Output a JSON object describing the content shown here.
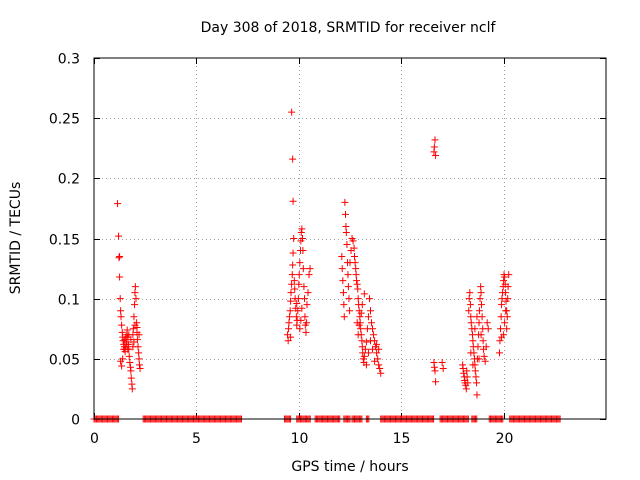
{
  "chart_data": {
    "type": "scatter",
    "title": "Day 308 of 2018, SRMTID for receiver nclf",
    "xlabel": "GPS time / hours",
    "ylabel": "SRMTID / TECUs",
    "xlim": [
      0,
      25
    ],
    "ylim": [
      0,
      0.3
    ],
    "x_ticks": [
      0,
      5,
      10,
      15,
      20
    ],
    "y_ticks": [
      0,
      0.05,
      0.1,
      0.15,
      0.2,
      0.25,
      0.3
    ],
    "x_tick_labels": [
      "0",
      "5",
      "10",
      "15",
      "20"
    ],
    "y_tick_labels": [
      "0",
      "0.05",
      "0.1",
      "0.15",
      "0.2",
      "0.25",
      "0.3"
    ],
    "grid": true,
    "marker": "+",
    "marker_color": "#ff0000",
    "zero_segments": [
      [
        0,
        1.2
      ],
      [
        2.4,
        7.2
      ],
      [
        9.3,
        9.6
      ],
      [
        9.9,
        10.6
      ],
      [
        10.8,
        12.0
      ],
      [
        12.2,
        12.5
      ],
      [
        12.6,
        13.1
      ],
      [
        13.3,
        13.45
      ],
      [
        14.0,
        16.6
      ],
      [
        16.9,
        18.3
      ],
      [
        18.45,
        18.7
      ],
      [
        19.3,
        20.0
      ],
      [
        20.3,
        22.8
      ]
    ],
    "clusters": [
      {
        "name": "burst-1",
        "x_range": [
          1.1,
          2.3
        ],
        "points": [
          [
            1.15,
            0.179
          ],
          [
            1.2,
            0.152
          ],
          [
            1.22,
            0.134
          ],
          [
            1.25,
            0.118
          ],
          [
            1.28,
            0.1
          ],
          [
            1.3,
            0.09
          ],
          [
            1.32,
            0.085
          ],
          [
            1.35,
            0.078
          ],
          [
            1.38,
            0.072
          ],
          [
            1.4,
            0.068
          ],
          [
            1.42,
            0.065
          ],
          [
            1.45,
            0.062
          ],
          [
            1.48,
            0.06
          ],
          [
            1.5,
            0.058
          ],
          [
            1.52,
            0.056
          ],
          [
            1.55,
            0.06
          ],
          [
            1.58,
            0.064
          ],
          [
            1.6,
            0.07
          ],
          [
            1.62,
            0.074
          ],
          [
            1.65,
            0.068
          ],
          [
            1.68,
            0.062
          ],
          [
            1.7,
            0.058
          ],
          [
            1.72,
            0.052
          ],
          [
            1.75,
            0.047
          ],
          [
            1.78,
            0.043
          ],
          [
            1.8,
            0.04
          ],
          [
            1.82,
            0.034
          ],
          [
            1.85,
            0.029
          ],
          [
            1.87,
            0.025
          ],
          [
            1.9,
            0.06
          ],
          [
            1.92,
            0.075
          ],
          [
            1.95,
            0.085
          ],
          [
            1.98,
            0.095
          ],
          [
            2.0,
            0.105
          ],
          [
            2.02,
            0.11
          ],
          [
            2.05,
            0.1
          ],
          [
            2.08,
            0.08
          ],
          [
            2.1,
            0.072
          ],
          [
            2.12,
            0.066
          ],
          [
            2.15,
            0.06
          ],
          [
            2.18,
            0.055
          ],
          [
            2.2,
            0.05
          ],
          [
            2.22,
            0.045
          ],
          [
            2.25,
            0.042
          ],
          [
            1.3,
            0.048
          ],
          [
            1.35,
            0.044
          ],
          [
            1.4,
            0.05
          ],
          [
            1.45,
            0.058
          ],
          [
            1.5,
            0.066
          ],
          [
            1.6,
            0.062
          ],
          [
            1.7,
            0.07
          ],
          [
            1.8,
            0.066
          ],
          [
            1.9,
            0.07
          ],
          [
            2.0,
            0.078
          ],
          [
            2.1,
            0.076
          ],
          [
            2.2,
            0.07
          ],
          [
            1.25,
            0.135
          ],
          [
            1.55,
            0.068
          ],
          [
            1.65,
            0.058
          ],
          [
            1.95,
            0.064
          ]
        ]
      },
      {
        "name": "burst-2",
        "x_range": [
          9.4,
          10.6
        ],
        "points": [
          [
            9.65,
            0.255
          ],
          [
            9.7,
            0.216
          ],
          [
            9.72,
            0.181
          ],
          [
            9.45,
            0.07
          ],
          [
            9.48,
            0.065
          ],
          [
            9.5,
            0.075
          ],
          [
            9.52,
            0.08
          ],
          [
            9.55,
            0.085
          ],
          [
            9.58,
            0.09
          ],
          [
            9.6,
            0.098
          ],
          [
            9.62,
            0.105
          ],
          [
            9.65,
            0.112
          ],
          [
            9.68,
            0.12
          ],
          [
            9.7,
            0.128
          ],
          [
            9.72,
            0.138
          ],
          [
            9.75,
            0.15
          ],
          [
            9.78,
            0.115
          ],
          [
            9.8,
            0.108
          ],
          [
            9.82,
            0.1
          ],
          [
            9.85,
            0.092
          ],
          [
            9.88,
            0.085
          ],
          [
            9.9,
            0.078
          ],
          [
            9.92,
            0.082
          ],
          [
            9.95,
            0.09
          ],
          [
            9.98,
            0.1
          ],
          [
            10.0,
            0.112
          ],
          [
            10.02,
            0.12
          ],
          [
            10.05,
            0.13
          ],
          [
            10.08,
            0.14
          ],
          [
            10.1,
            0.148
          ],
          [
            10.12,
            0.155
          ],
          [
            10.15,
            0.158
          ],
          [
            10.18,
            0.15
          ],
          [
            10.2,
            0.14
          ],
          [
            10.22,
            0.125
          ],
          [
            10.25,
            0.11
          ],
          [
            10.28,
            0.1
          ],
          [
            10.3,
            0.085
          ],
          [
            10.32,
            0.078
          ],
          [
            10.35,
            0.072
          ],
          [
            10.38,
            0.08
          ],
          [
            10.4,
            0.095
          ],
          [
            10.45,
            0.105
          ],
          [
            10.5,
            0.12
          ],
          [
            10.55,
            0.125
          ],
          [
            9.6,
            0.068
          ],
          [
            9.9,
            0.096
          ],
          [
            10.05,
            0.075
          ],
          [
            10.1,
            0.082
          ],
          [
            10.15,
            0.092
          ]
        ]
      },
      {
        "name": "burst-3",
        "x_range": [
          12.0,
          14.1
        ],
        "points": [
          [
            12.1,
            0.135
          ],
          [
            12.12,
            0.125
          ],
          [
            12.15,
            0.115
          ],
          [
            12.18,
            0.105
          ],
          [
            12.2,
            0.095
          ],
          [
            12.22,
            0.085
          ],
          [
            12.25,
            0.18
          ],
          [
            12.28,
            0.17
          ],
          [
            12.3,
            0.16
          ],
          [
            12.32,
            0.155
          ],
          [
            12.35,
            0.145
          ],
          [
            12.38,
            0.13
          ],
          [
            12.4,
            0.12
          ],
          [
            12.42,
            0.11
          ],
          [
            12.45,
            0.1
          ],
          [
            12.48,
            0.09
          ],
          [
            12.5,
            0.13
          ],
          [
            12.55,
            0.14
          ],
          [
            12.6,
            0.15
          ],
          [
            12.65,
            0.148
          ],
          [
            12.7,
            0.142
          ],
          [
            12.72,
            0.135
          ],
          [
            12.75,
            0.13
          ],
          [
            12.78,
            0.125
          ],
          [
            12.8,
            0.12
          ],
          [
            12.82,
            0.115
          ],
          [
            12.85,
            0.112
          ],
          [
            12.88,
            0.108
          ],
          [
            12.9,
            0.1
          ],
          [
            12.92,
            0.095
          ],
          [
            12.95,
            0.09
          ],
          [
            12.98,
            0.085
          ],
          [
            13.0,
            0.08
          ],
          [
            13.02,
            0.075
          ],
          [
            13.05,
            0.07
          ],
          [
            13.08,
            0.065
          ],
          [
            13.1,
            0.06
          ],
          [
            13.12,
            0.055
          ],
          [
            13.15,
            0.05
          ],
          [
            13.18,
            0.047
          ],
          [
            13.2,
            0.052
          ],
          [
            13.25,
            0.058
          ],
          [
            13.3,
            0.064
          ],
          [
            13.35,
            0.075
          ],
          [
            13.4,
            0.085
          ],
          [
            13.45,
            0.1
          ],
          [
            13.5,
            0.09
          ],
          [
            13.55,
            0.08
          ],
          [
            13.6,
            0.075
          ],
          [
            13.65,
            0.07
          ],
          [
            13.7,
            0.065
          ],
          [
            13.75,
            0.06
          ],
          [
            13.8,
            0.055
          ],
          [
            13.85,
            0.05
          ],
          [
            13.9,
            0.045
          ],
          [
            13.95,
            0.042
          ],
          [
            14.0,
            0.038
          ],
          [
            13.05,
            0.088
          ],
          [
            13.1,
            0.095
          ],
          [
            13.2,
            0.104
          ],
          [
            13.3,
            0.045
          ],
          [
            13.4,
            0.055
          ],
          [
            13.5,
            0.065
          ],
          [
            13.6,
            0.058
          ],
          [
            13.7,
            0.048
          ],
          [
            13.8,
            0.062
          ],
          [
            13.9,
            0.058
          ],
          [
            12.85,
            0.08
          ],
          [
            12.9,
            0.07
          ],
          [
            12.95,
            0.078
          ]
        ]
      },
      {
        "name": "burst-4",
        "x_range": [
          16.6,
          17.2
        ],
        "points": [
          [
            16.6,
            0.222
          ],
          [
            16.62,
            0.226
          ],
          [
            16.65,
            0.232
          ],
          [
            16.68,
            0.219
          ],
          [
            16.6,
            0.047
          ],
          [
            16.62,
            0.043
          ],
          [
            16.65,
            0.04
          ],
          [
            16.68,
            0.031
          ],
          [
            17.0,
            0.047
          ],
          [
            17.05,
            0.042
          ]
        ]
      },
      {
        "name": "burst-5",
        "x_range": [
          18.0,
          19.3
        ],
        "points": [
          [
            18.0,
            0.045
          ],
          [
            18.02,
            0.042
          ],
          [
            18.05,
            0.038
          ],
          [
            18.08,
            0.035
          ],
          [
            18.1,
            0.032
          ],
          [
            18.12,
            0.03
          ],
          [
            18.15,
            0.028
          ],
          [
            18.18,
            0.025
          ],
          [
            18.2,
            0.04
          ],
          [
            18.22,
            0.035
          ],
          [
            18.25,
            0.03
          ],
          [
            18.3,
            0.09
          ],
          [
            18.32,
            0.1
          ],
          [
            18.35,
            0.105
          ],
          [
            18.38,
            0.095
          ],
          [
            18.4,
            0.085
          ],
          [
            18.42,
            0.08
          ],
          [
            18.45,
            0.075
          ],
          [
            18.48,
            0.07
          ],
          [
            18.5,
            0.065
          ],
          [
            18.52,
            0.06
          ],
          [
            18.55,
            0.055
          ],
          [
            18.58,
            0.05
          ],
          [
            18.6,
            0.045
          ],
          [
            18.62,
            0.04
          ],
          [
            18.65,
            0.035
          ],
          [
            18.68,
            0.03
          ],
          [
            18.7,
            0.02
          ],
          [
            18.72,
            0.05
          ],
          [
            18.75,
            0.06
          ],
          [
            18.78,
            0.07
          ],
          [
            18.8,
            0.08
          ],
          [
            18.82,
            0.09
          ],
          [
            18.85,
            0.1
          ],
          [
            18.88,
            0.11
          ],
          [
            18.9,
            0.105
          ],
          [
            18.92,
            0.095
          ],
          [
            18.95,
            0.085
          ],
          [
            18.98,
            0.075
          ],
          [
            19.0,
            0.065
          ],
          [
            19.02,
            0.058
          ],
          [
            19.05,
            0.052
          ],
          [
            19.1,
            0.048
          ],
          [
            19.15,
            0.06
          ],
          [
            19.2,
            0.08
          ],
          [
            19.25,
            0.075
          ],
          [
            18.4,
            0.055
          ],
          [
            18.5,
            0.045
          ],
          [
            18.6,
            0.075
          ],
          [
            18.7,
            0.085
          ],
          [
            18.8,
            0.05
          ],
          [
            18.9,
            0.07
          ]
        ]
      },
      {
        "name": "burst-6",
        "x_range": [
          19.8,
          20.3
        ],
        "points": [
          [
            19.8,
            0.055
          ],
          [
            19.82,
            0.065
          ],
          [
            19.85,
            0.075
          ],
          [
            19.88,
            0.085
          ],
          [
            19.9,
            0.095
          ],
          [
            19.92,
            0.1
          ],
          [
            19.95,
            0.105
          ],
          [
            19.98,
            0.11
          ],
          [
            20.0,
            0.115
          ],
          [
            20.02,
            0.12
          ],
          [
            20.05,
            0.118
          ],
          [
            20.08,
            0.112
          ],
          [
            20.1,
            0.105
          ],
          [
            20.12,
            0.098
          ],
          [
            20.15,
            0.09
          ],
          [
            20.18,
            0.085
          ],
          [
            20.2,
            0.1
          ],
          [
            20.22,
            0.11
          ],
          [
            20.25,
            0.12
          ],
          [
            20.0,
            0.07
          ],
          [
            20.05,
            0.08
          ],
          [
            20.1,
            0.09
          ],
          [
            19.9,
            0.068
          ],
          [
            20.15,
            0.075
          ]
        ]
      }
    ]
  }
}
